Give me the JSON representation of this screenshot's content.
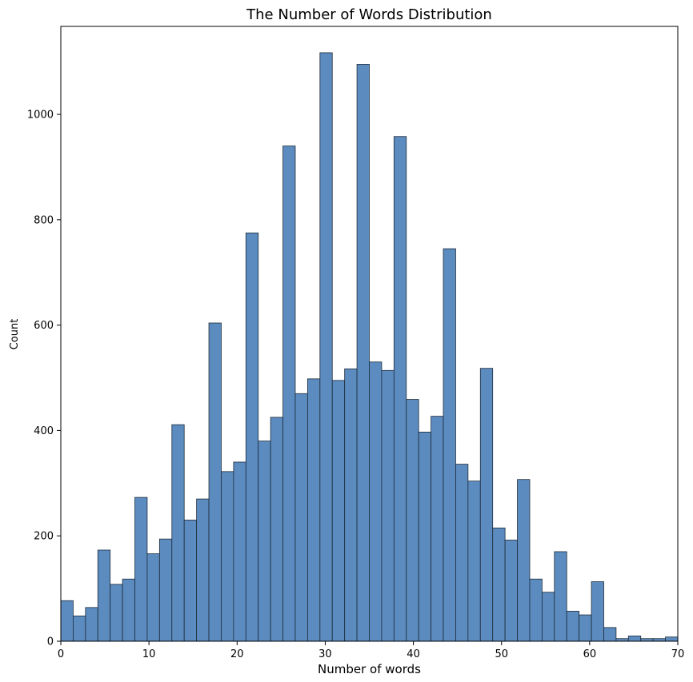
{
  "chart_data": {
    "type": "bar",
    "title": "The Number of Words Distribution",
    "xlabel": "Number of words",
    "ylabel": "Count",
    "xlim": [
      0,
      70
    ],
    "ylim": [
      0,
      1167
    ],
    "xticks": [
      0,
      10,
      20,
      30,
      40,
      50,
      60,
      70
    ],
    "yticks": [
      0,
      200,
      400,
      600,
      800,
      1000
    ],
    "bin_width": 1.4,
    "bin_start": 0,
    "bar_color": "#5b8bbf",
    "edge_color": "#1f2c3a",
    "values": [
      77,
      48,
      64,
      173,
      108,
      118,
      273,
      166,
      194,
      411,
      230,
      270,
      604,
      322,
      340,
      775,
      380,
      425,
      940,
      470,
      498,
      1117,
      495,
      517,
      1095,
      530,
      514,
      958,
      459,
      397,
      427,
      745,
      336,
      304,
      518,
      215,
      192,
      307,
      118,
      93,
      170,
      57,
      50,
      113,
      26,
      5,
      10,
      5,
      5,
      8
    ]
  }
}
